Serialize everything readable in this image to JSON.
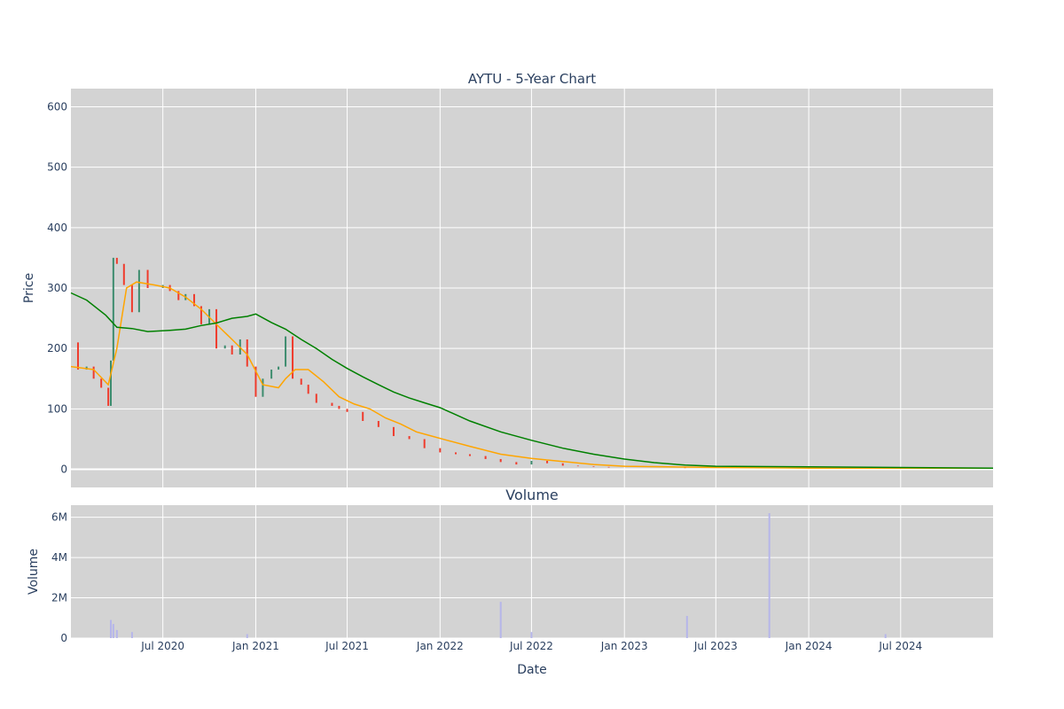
{
  "chart_data": [
    {
      "type": "candlestick",
      "title": "AYTU - 5-Year Chart",
      "ylabel": "Price",
      "ylim": [
        -30,
        630
      ],
      "yticks": [
        0,
        100,
        200,
        300,
        400,
        500,
        600
      ],
      "grid": true,
      "colors": {
        "background": "#d3d3d3",
        "up": "#3d8c6e",
        "down": "#ef3b2c",
        "ma_short": "#ffa500",
        "ma_long": "#008000"
      },
      "series": [
        {
          "kind": "price_close",
          "x": [
            "2020-01-01",
            "2020-01-15",
            "2020-02-01",
            "2020-02-15",
            "2020-03-01",
            "2020-03-15",
            "2020-03-20",
            "2020-03-25",
            "2020-04-01",
            "2020-04-15",
            "2020-05-01",
            "2020-05-15",
            "2020-06-01",
            "2020-06-15",
            "2020-07-01",
            "2020-07-15",
            "2020-08-01",
            "2020-08-15",
            "2020-09-01",
            "2020-09-15",
            "2020-10-01",
            "2020-10-15",
            "2020-11-01",
            "2020-11-15",
            "2020-12-01",
            "2020-12-15",
            "2021-01-01",
            "2021-01-15",
            "2021-02-01",
            "2021-02-15",
            "2021-03-01",
            "2021-03-15",
            "2021-04-01",
            "2021-04-15",
            "2021-05-01",
            "2021-05-15",
            "2021-06-01",
            "2021-06-15",
            "2021-07-01",
            "2021-08-01",
            "2021-09-01",
            "2021-10-01",
            "2021-11-01",
            "2021-12-01",
            "2022-01-01",
            "2022-02-01",
            "2022-03-01",
            "2022-04-01",
            "2022-05-01",
            "2022-06-01",
            "2022-07-01",
            "2022-08-01",
            "2022-09-01",
            "2022-10-01",
            "2022-11-01",
            "2022-12-01",
            "2023-01-01",
            "2023-03-01",
            "2023-05-01",
            "2023-07-01",
            "2023-09-01",
            "2023-11-01",
            "2024-01-01",
            "2024-03-01",
            "2024-05-01",
            "2024-07-01",
            "2024-09-01",
            "2024-11-01",
            "2024-12-31"
          ],
          "values": [
            210,
            165,
            170,
            150,
            135,
            105,
            180,
            350,
            340,
            305,
            260,
            330,
            300,
            300,
            305,
            295,
            280,
            290,
            270,
            240,
            265,
            200,
            205,
            190,
            215,
            170,
            120,
            150,
            165,
            170,
            220,
            150,
            140,
            125,
            110,
            110,
            105,
            100,
            95,
            80,
            70,
            55,
            50,
            35,
            28,
            25,
            22,
            17,
            12,
            8,
            14,
            10,
            6,
            5,
            4,
            3,
            3,
            3,
            2,
            2,
            2,
            2,
            2,
            2,
            2,
            2,
            2,
            2,
            2
          ]
        },
        {
          "kind": "ma_short",
          "x": [
            "2020-01-01",
            "2020-02-15",
            "2020-03-15",
            "2020-04-01",
            "2020-04-20",
            "2020-05-10",
            "2020-06-15",
            "2020-07-15",
            "2020-08-15",
            "2020-09-15",
            "2020-10-15",
            "2020-11-15",
            "2020-12-15",
            "2021-01-15",
            "2021-02-15",
            "2021-03-01",
            "2021-03-20",
            "2021-04-15",
            "2021-05-15",
            "2021-06-15",
            "2021-07-15",
            "2021-08-15",
            "2021-09-15",
            "2021-10-15",
            "2021-11-15",
            "2021-12-15",
            "2022-01-15",
            "2022-03-01",
            "2022-05-01",
            "2022-07-01",
            "2022-09-01",
            "2022-11-01",
            "2023-01-01",
            "2023-07-01",
            "2024-01-01",
            "2024-07-01",
            "2024-12-31"
          ],
          "values": [
            170,
            165,
            140,
            200,
            300,
            310,
            305,
            300,
            285,
            265,
            240,
            215,
            190,
            140,
            135,
            150,
            165,
            165,
            145,
            120,
            108,
            100,
            85,
            75,
            62,
            55,
            48,
            38,
            25,
            18,
            13,
            8,
            5,
            3,
            2,
            2,
            2
          ]
        },
        {
          "kind": "ma_long",
          "x": [
            "2020-01-01",
            "2020-02-01",
            "2020-03-10",
            "2020-04-01",
            "2020-05-01",
            "2020-06-01",
            "2020-07-15",
            "2020-08-15",
            "2020-09-15",
            "2020-10-15",
            "2020-11-15",
            "2020-12-15",
            "2021-01-01",
            "2021-02-01",
            "2021-03-01",
            "2021-04-01",
            "2021-05-01",
            "2021-06-01",
            "2021-07-01",
            "2021-08-01",
            "2021-09-01",
            "2021-10-01",
            "2021-11-01",
            "2021-12-01",
            "2022-01-01",
            "2022-03-01",
            "2022-05-01",
            "2022-07-01",
            "2022-09-01",
            "2022-11-01",
            "2023-01-01",
            "2023-03-01",
            "2023-05-01",
            "2023-07-01",
            "2024-01-01",
            "2024-07-01",
            "2024-12-31"
          ],
          "values": [
            292,
            280,
            255,
            235,
            233,
            228,
            230,
            232,
            238,
            242,
            250,
            253,
            257,
            243,
            232,
            215,
            200,
            182,
            167,
            153,
            140,
            128,
            118,
            110,
            102,
            80,
            62,
            48,
            35,
            25,
            17,
            11,
            7,
            5,
            4,
            3,
            2
          ]
        }
      ]
    },
    {
      "type": "bar",
      "title": "Volume",
      "xlabel": "Date",
      "ylabel": "Volume",
      "ylim": [
        0,
        6600000
      ],
      "yticks": [
        0,
        2000000,
        4000000,
        6000000
      ],
      "ytick_labels": [
        "0",
        "2M",
        "4M",
        "6M"
      ],
      "xlim": [
        "2020-01-01",
        "2024-12-31"
      ],
      "xticks": [
        "2020-07-01",
        "2021-01-01",
        "2021-07-01",
        "2022-01-01",
        "2022-07-01",
        "2023-01-01",
        "2023-07-01",
        "2024-01-01",
        "2024-07-01"
      ],
      "xtick_labels": [
        "Jul 2020",
        "Jan 2021",
        "Jul 2021",
        "Jan 2022",
        "Jul 2022",
        "Jan 2023",
        "Jul 2023",
        "Jan 2024",
        "Jul 2024"
      ],
      "grid": true,
      "colors": {
        "background": "#d3d3d3",
        "bar": "#b6b6ea"
      },
      "x": [
        "2020-03-20",
        "2020-03-25",
        "2020-04-01",
        "2020-05-01",
        "2020-12-15",
        "2022-05-01",
        "2022-07-01",
        "2023-05-05",
        "2023-10-15",
        "2024-06-01"
      ],
      "values": [
        900000,
        700000,
        400000,
        300000,
        200000,
        1800000,
        300000,
        1100000,
        6200000,
        200000
      ]
    }
  ]
}
